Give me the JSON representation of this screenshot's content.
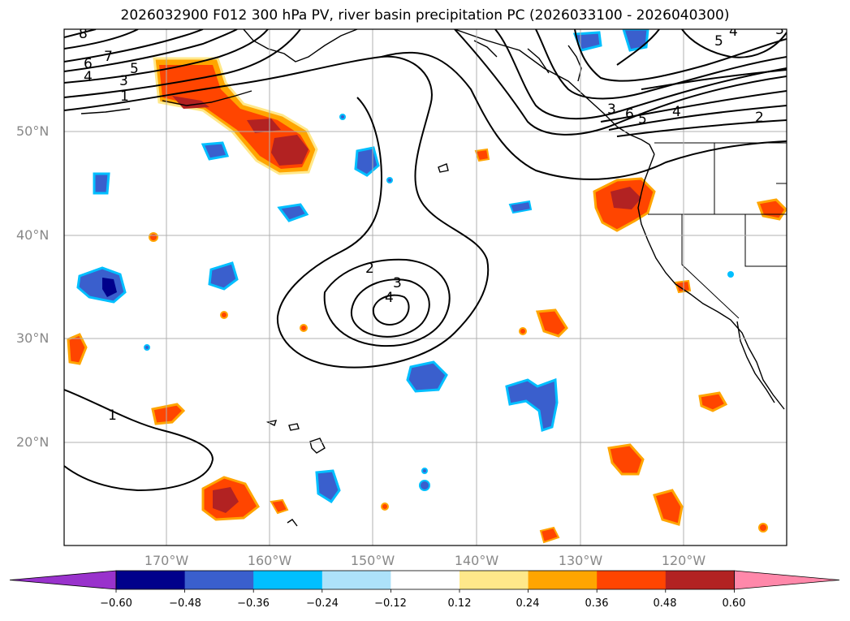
{
  "title": "2026032900 F012 300 hPa PV, river basin precipitation PC (2026033100 - 2026040300)",
  "lat_labels": [
    "50°N",
    "40°N",
    "30°N",
    "20°N"
  ],
  "lon_labels": [
    "170°W",
    "160°W",
    "150°W",
    "140°W",
    "130°W",
    "120°W"
  ],
  "contour_labels": [
    "8",
    "7",
    "6",
    "5",
    "4",
    "3",
    "1",
    "2",
    "3",
    "4",
    "1",
    "6",
    "5",
    "4",
    "2",
    "5",
    "4",
    "3",
    "3"
  ],
  "colorbar": {
    "ticks": [
      "−0.60",
      "−0.48",
      "−0.36",
      "−0.24",
      "−0.12",
      "0.12",
      "0.24",
      "0.36",
      "0.48",
      "0.60"
    ],
    "colors": {
      "lt_neg060": "#9932CC",
      "neg060_neg048": "#00008B",
      "neg048_neg036": "#3A5FCD",
      "neg036_neg024": "#00BFFF",
      "neg024_neg012": "#ADE2FA",
      "neg012_012": "#FFFFFF",
      "p012_024": "#FFE88A",
      "p024_036": "#FFA500",
      "p036_048": "#FF4500",
      "p048_060": "#B22222",
      "gt_060": "#FF88AA"
    }
  }
}
